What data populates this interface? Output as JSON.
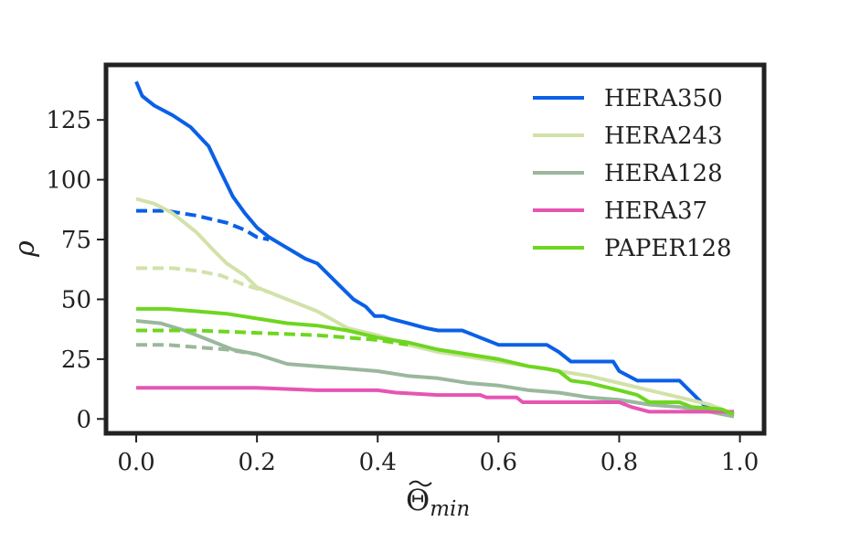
{
  "chart_data": {
    "type": "line",
    "xlabel_main": "Θ",
    "xlabel_sub": "min",
    "ylabel": "ρ",
    "xlim": [
      -0.05,
      1.04
    ],
    "ylim": [
      -6,
      148
    ],
    "xticks": [
      0.0,
      0.2,
      0.4,
      0.6,
      0.8,
      1.0
    ],
    "xtick_labels": [
      "0.0",
      "0.2",
      "0.4",
      "0.6",
      "0.8",
      "1.0"
    ],
    "yticks": [
      0,
      25,
      50,
      75,
      100,
      125
    ],
    "ytick_labels": [
      "0",
      "25",
      "50",
      "75",
      "100",
      "125"
    ],
    "grid": false,
    "legend_position": "top-right",
    "series": [
      {
        "name": "HERA350",
        "color": "#0a60e6",
        "style": "solid",
        "points": [
          [
            0.0,
            141
          ],
          [
            0.01,
            135
          ],
          [
            0.03,
            131
          ],
          [
            0.06,
            127
          ],
          [
            0.09,
            122
          ],
          [
            0.12,
            114
          ],
          [
            0.135,
            106
          ],
          [
            0.16,
            93
          ],
          [
            0.18,
            86
          ],
          [
            0.2,
            80
          ],
          [
            0.22,
            76
          ],
          [
            0.24,
            73
          ],
          [
            0.26,
            70
          ],
          [
            0.28,
            67
          ],
          [
            0.3,
            65
          ],
          [
            0.32,
            60
          ],
          [
            0.34,
            55
          ],
          [
            0.36,
            50
          ],
          [
            0.38,
            47
          ],
          [
            0.395,
            43
          ],
          [
            0.41,
            43
          ],
          [
            0.42,
            42
          ],
          [
            0.45,
            40
          ],
          [
            0.48,
            38
          ],
          [
            0.5,
            37
          ],
          [
            0.54,
            37
          ],
          [
            0.57,
            34
          ],
          [
            0.6,
            31
          ],
          [
            0.68,
            31
          ],
          [
            0.7,
            28
          ],
          [
            0.72,
            24
          ],
          [
            0.79,
            24
          ],
          [
            0.8,
            20
          ],
          [
            0.83,
            16
          ],
          [
            0.9,
            16
          ],
          [
            0.92,
            11
          ],
          [
            0.94,
            6
          ],
          [
            0.96,
            4
          ],
          [
            0.98,
            2
          ],
          [
            0.99,
            2
          ]
        ]
      },
      {
        "name": "HERA350 (dashed)",
        "color": "#0a60e6",
        "style": "dashed",
        "points": [
          [
            0.0,
            87
          ],
          [
            0.05,
            87
          ],
          [
            0.1,
            85
          ],
          [
            0.15,
            82
          ],
          [
            0.18,
            79
          ],
          [
            0.2,
            76
          ],
          [
            0.22,
            75
          ]
        ]
      },
      {
        "name": "HERA243",
        "color": "#d2e2a8",
        "style": "solid",
        "points": [
          [
            0.0,
            92
          ],
          [
            0.03,
            90
          ],
          [
            0.06,
            86
          ],
          [
            0.1,
            78
          ],
          [
            0.13,
            70
          ],
          [
            0.15,
            65
          ],
          [
            0.18,
            60
          ],
          [
            0.2,
            55
          ],
          [
            0.25,
            50
          ],
          [
            0.3,
            45
          ],
          [
            0.35,
            38
          ],
          [
            0.4,
            35
          ],
          [
            0.45,
            31
          ],
          [
            0.5,
            28
          ],
          [
            0.55,
            26
          ],
          [
            0.6,
            24
          ],
          [
            0.65,
            22
          ],
          [
            0.7,
            20
          ],
          [
            0.75,
            18
          ],
          [
            0.8,
            15
          ],
          [
            0.85,
            12
          ],
          [
            0.9,
            9
          ],
          [
            0.95,
            6
          ],
          [
            0.99,
            2
          ]
        ]
      },
      {
        "name": "HERA243 (dashed)",
        "color": "#d2e2a8",
        "style": "dashed",
        "points": [
          [
            0.0,
            63
          ],
          [
            0.06,
            63
          ],
          [
            0.1,
            62
          ],
          [
            0.14,
            60
          ],
          [
            0.18,
            56
          ],
          [
            0.22,
            53
          ]
        ]
      },
      {
        "name": "HERA128",
        "color": "#9ab89c",
        "style": "solid",
        "points": [
          [
            0.0,
            41
          ],
          [
            0.04,
            40
          ],
          [
            0.08,
            37
          ],
          [
            0.12,
            33
          ],
          [
            0.16,
            29
          ],
          [
            0.2,
            27
          ],
          [
            0.25,
            23
          ],
          [
            0.3,
            22
          ],
          [
            0.35,
            21
          ],
          [
            0.4,
            20
          ],
          [
            0.45,
            18
          ],
          [
            0.5,
            17
          ],
          [
            0.55,
            15
          ],
          [
            0.6,
            14
          ],
          [
            0.65,
            12
          ],
          [
            0.7,
            11
          ],
          [
            0.75,
            9
          ],
          [
            0.8,
            8
          ],
          [
            0.85,
            6
          ],
          [
            0.9,
            5
          ],
          [
            0.95,
            3
          ],
          [
            0.99,
            1
          ]
        ]
      },
      {
        "name": "HERA128 (dashed)",
        "color": "#9ab89c",
        "style": "dashed",
        "points": [
          [
            0.0,
            31
          ],
          [
            0.05,
            31
          ],
          [
            0.1,
            30
          ],
          [
            0.15,
            29
          ],
          [
            0.2,
            27
          ]
        ]
      },
      {
        "name": "HERA37",
        "color": "#e655b2",
        "style": "solid",
        "points": [
          [
            0.0,
            13
          ],
          [
            0.1,
            13
          ],
          [
            0.2,
            13
          ],
          [
            0.3,
            12
          ],
          [
            0.4,
            12
          ],
          [
            0.43,
            11
          ],
          [
            0.5,
            10
          ],
          [
            0.57,
            10
          ],
          [
            0.58,
            9
          ],
          [
            0.63,
            9
          ],
          [
            0.64,
            7
          ],
          [
            0.75,
            7
          ],
          [
            0.8,
            7
          ],
          [
            0.82,
            5
          ],
          [
            0.85,
            3
          ],
          [
            0.9,
            3
          ],
          [
            0.99,
            3
          ]
        ]
      },
      {
        "name": "PAPER128",
        "color": "#6ed620",
        "style": "solid",
        "points": [
          [
            0.0,
            46
          ],
          [
            0.05,
            46
          ],
          [
            0.1,
            45
          ],
          [
            0.15,
            44
          ],
          [
            0.2,
            42
          ],
          [
            0.25,
            40
          ],
          [
            0.3,
            39
          ],
          [
            0.35,
            37
          ],
          [
            0.4,
            34
          ],
          [
            0.45,
            32
          ],
          [
            0.5,
            29
          ],
          [
            0.55,
            27
          ],
          [
            0.6,
            25
          ],
          [
            0.65,
            22
          ],
          [
            0.68,
            21
          ],
          [
            0.7,
            20
          ],
          [
            0.72,
            16
          ],
          [
            0.75,
            15
          ],
          [
            0.8,
            12
          ],
          [
            0.83,
            10
          ],
          [
            0.85,
            7
          ],
          [
            0.9,
            7
          ],
          [
            0.92,
            5
          ],
          [
            0.97,
            4
          ],
          [
            0.99,
            2
          ]
        ]
      },
      {
        "name": "PAPER128 (dashed)",
        "color": "#6ed620",
        "style": "dashed",
        "points": [
          [
            0.0,
            37
          ],
          [
            0.1,
            37
          ],
          [
            0.2,
            36
          ],
          [
            0.3,
            35
          ],
          [
            0.4,
            33
          ],
          [
            0.45,
            31
          ]
        ]
      }
    ],
    "legend": [
      {
        "label": "HERA350",
        "color": "#0a60e6"
      },
      {
        "label": "HERA243",
        "color": "#d2e2a8"
      },
      {
        "label": "HERA128",
        "color": "#9ab89c"
      },
      {
        "label": "HERA37",
        "color": "#e655b2"
      },
      {
        "label": "PAPER128",
        "color": "#6ed620"
      }
    ]
  }
}
